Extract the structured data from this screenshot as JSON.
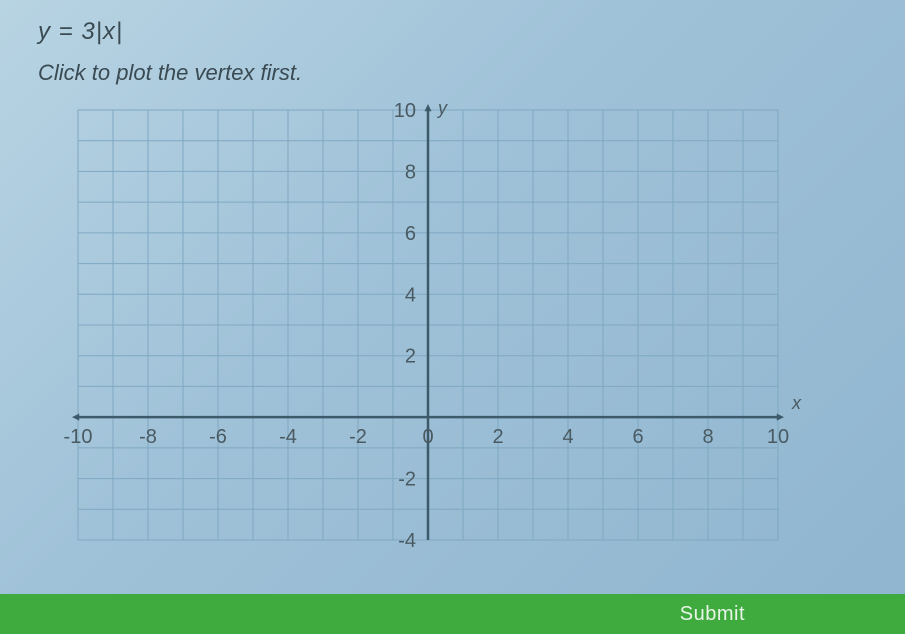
{
  "equation": "y = 3|x|",
  "instruction": "Click to plot the vertex first.",
  "submit_label": "Submit",
  "chart": {
    "type": "cartesian-grid",
    "x_axis_label": "x",
    "y_axis_label": "y",
    "xlim": [
      -10,
      10
    ],
    "ylim": [
      -4,
      10
    ],
    "x_ticks": [
      -10,
      -8,
      -6,
      -4,
      -2,
      0,
      2,
      4,
      6,
      8,
      10
    ],
    "y_ticks": [
      -4,
      -2,
      0,
      2,
      4,
      6,
      8,
      10
    ],
    "grid_step": 1,
    "grid_color": "#7fa8c2",
    "axis_color": "#3d5a6b",
    "tick_label_color": "#4a5a62",
    "tick_label_fontsize": 20,
    "background_color": "#a9c9dd"
  },
  "colors": {
    "page_bg": "#a9c9dd",
    "text": "#3a4a52",
    "submit_bg": "#3fab3f",
    "submit_text": "#e8f5e8"
  }
}
